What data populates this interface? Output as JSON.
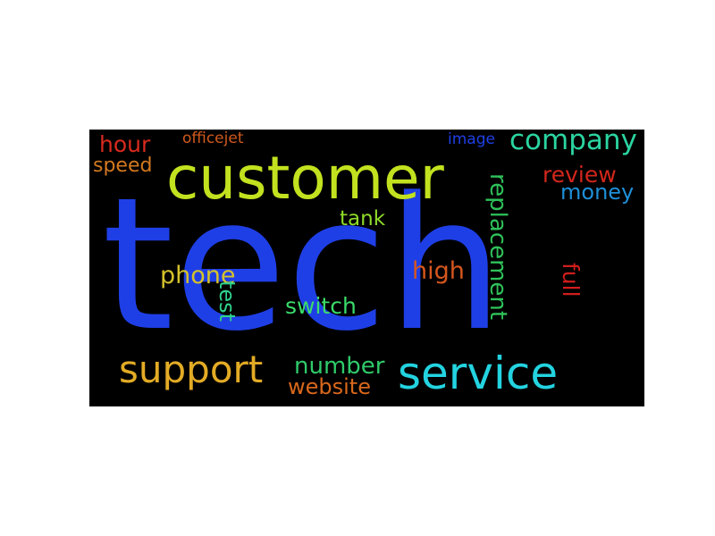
{
  "words": [
    {
      "text": "tech",
      "color": "#1f3fe6"
    },
    {
      "text": "customer",
      "color": "#c2e21f"
    },
    {
      "text": "service",
      "color": "#23d3e0"
    },
    {
      "text": "support",
      "color": "#e3ab25"
    },
    {
      "text": "company",
      "color": "#2bd4a0"
    },
    {
      "text": "replacement",
      "color": "#2fc25a"
    },
    {
      "text": "number",
      "color": "#2fca6a"
    },
    {
      "text": "website",
      "color": "#d9671c"
    },
    {
      "text": "phone",
      "color": "#d5c22b"
    },
    {
      "text": "high",
      "color": "#d6571e"
    },
    {
      "text": "switch",
      "color": "#3adc6a"
    },
    {
      "text": "test",
      "color": "#2fd38c"
    },
    {
      "text": "tank",
      "color": "#8fdc2a"
    },
    {
      "text": "review",
      "color": "#d3261c"
    },
    {
      "text": "money",
      "color": "#1e8fd8"
    },
    {
      "text": "full",
      "color": "#d11d1d"
    },
    {
      "text": "hour",
      "color": "#d92a1e"
    },
    {
      "text": "speed",
      "color": "#d4791f"
    },
    {
      "text": "officejet",
      "color": "#d1591c"
    },
    {
      "text": "image",
      "color": "#1f3fe6"
    }
  ]
}
